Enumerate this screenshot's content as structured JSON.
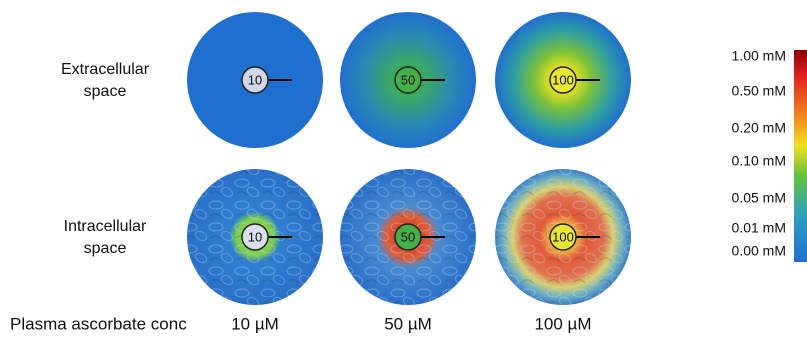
{
  "row_labels": [
    [
      "Extracellular",
      "space"
    ],
    [
      "Intracellular",
      "space"
    ]
  ],
  "panels": [
    [
      "10",
      "50",
      "100"
    ],
    [
      "10",
      "50",
      "100"
    ]
  ],
  "x_axis_label": "Plasma ascorbate conc",
  "columns": [
    "10 µM",
    "50 µM",
    "100 µM"
  ],
  "colorbar": {
    "labels": [
      "1.00 mM",
      "0.50 mM",
      "0.20 mM",
      "0.10 mM",
      "0.05 mM",
      "0.01 mM",
      "0.00 mM"
    ]
  }
}
